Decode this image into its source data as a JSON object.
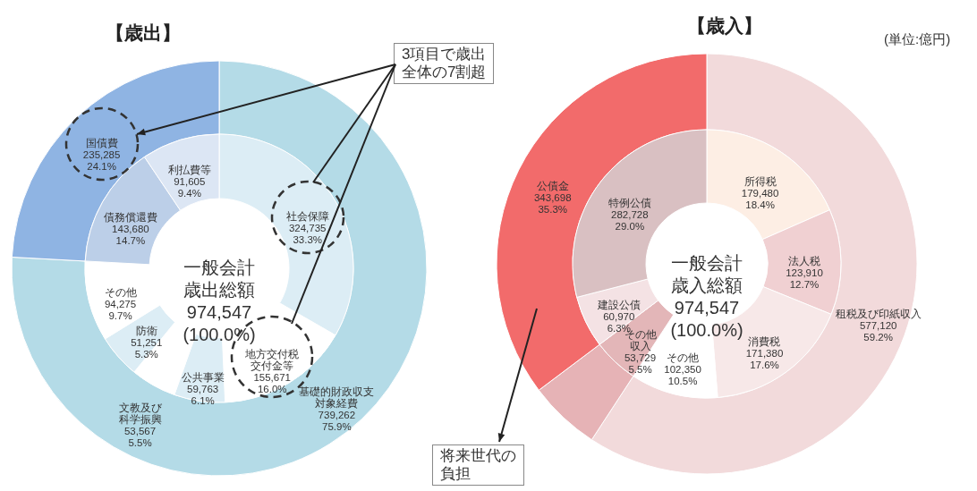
{
  "chart_data": [
    {
      "type": "donut",
      "title": "【歳出】",
      "categories": [
        "基礎的財政収支対象経費",
        "国債費"
      ],
      "values": [
        739262,
        235285
      ],
      "colors": [
        "#b4dbe7",
        "#8fb4e3"
      ],
      "value_labels": [
        "739,262\n75.9%",
        "235,285\n24.1%"
      ],
      "annotations": [
        "3項目で歳出全体の7割超"
      ]
    },
    {
      "type": "donut",
      "categories": [
        "社会保障",
        "地方交付税交付金等",
        "公共事業",
        "文教及び科学振興",
        "防衛",
        "その他",
        "債務償還費",
        "利払費等"
      ],
      "values": [
        324735,
        155671,
        59763,
        53567,
        51251,
        94275,
        143680,
        91605
      ],
      "colors": [
        "#dcedf5",
        "#ffffff",
        "#dcedf5",
        "#ffffff",
        "#dcedf5",
        "#ffffff",
        "#bccfe8",
        "#dce6f4"
      ],
      "value_labels": [
        "324,735\n33.3%",
        "155,671\n16.0%",
        "59,763\n6.1%",
        "53,567\n5.5%",
        "51,251\n5.3%",
        "94,275\n9.7%",
        "143,680\n14.7%",
        "91,605\n9.4%"
      ],
      "annotations": [
        "一般会計歳出総額\n974,547\n(100.0%)"
      ]
    },
    {
      "type": "donut",
      "title": "【歳入】",
      "categories": [
        "租税及び印紙収入",
        null,
        "公債金"
      ],
      "values": [
        577120,
        53729,
        343698
      ],
      "colors": [
        "#f2dadb",
        "#e6b3b6",
        "#f26b6b"
      ],
      "value_labels": [
        "577,120\n59.2%",
        null,
        "343,698\n35.3%"
      ],
      "annotations": [
        "(単位:億円)",
        "将来世代の負担"
      ]
    },
    {
      "type": "donut",
      "categories": [
        "所得税",
        "法人税",
        "消費税",
        "その他",
        "その他収入",
        "建設公債",
        "特例公債"
      ],
      "values": [
        179480,
        123910,
        171380,
        102350,
        53729,
        60970,
        282728
      ],
      "colors": [
        "#fdeee4",
        "#f0d0d2",
        "#f7e8e8",
        "#ffffff",
        "#e3b6b8",
        "#f4e2e4",
        "#d9c0c2"
      ],
      "value_labels": [
        "179,480\n18.4%",
        "123,910\n12.7%",
        "171,380\n17.6%",
        "102,350\n10.5%",
        "53,729\n5.5%",
        "60,970\n6.3%",
        "282,728\n29.0%"
      ],
      "annotations": [
        "一般会計歳入総額\n974,547\n(100.0%)"
      ]
    }
  ]
}
